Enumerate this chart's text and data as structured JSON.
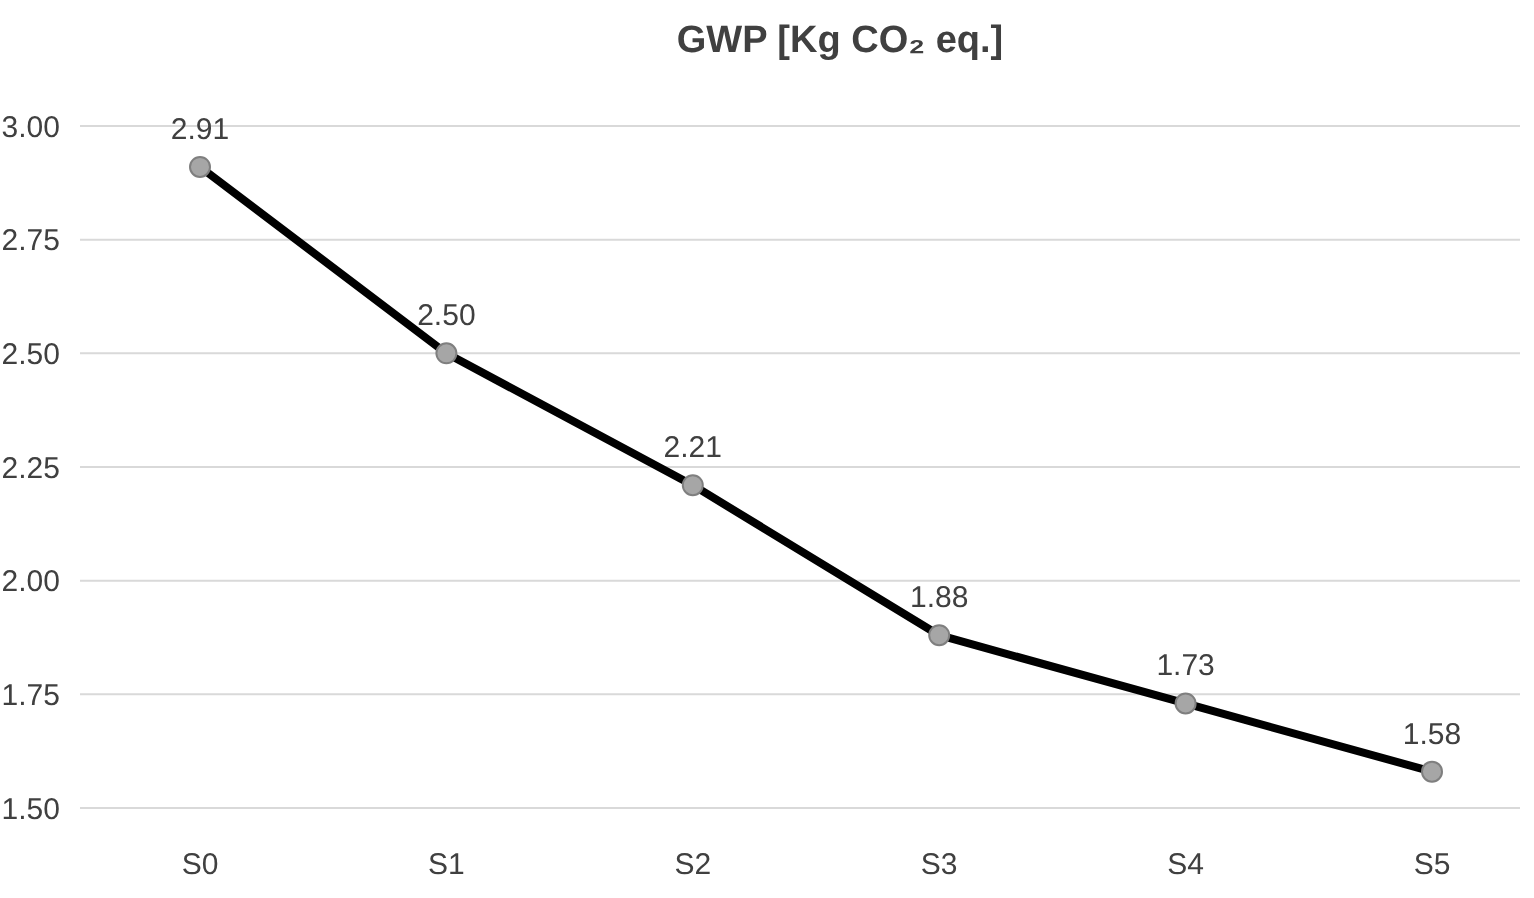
{
  "chart_data": {
    "type": "line",
    "title": "GWP [Kg CO₂ eq.]",
    "categories": [
      "S0",
      "S1",
      "S2",
      "S3",
      "S4",
      "S5"
    ],
    "series": [
      {
        "color": "#000000",
        "values": [
          2.91,
          2.5,
          2.21,
          1.88,
          1.73,
          1.58
        ]
      }
    ],
    "ylim": [
      1.5,
      3.0
    ],
    "yticks": [
      {
        "value": 1.5,
        "label": "1.50"
      },
      {
        "value": 1.75,
        "label": "1.75"
      },
      {
        "value": 2.0,
        "label": "2.00"
      },
      {
        "value": 2.25,
        "label": "2.25"
      },
      {
        "value": 2.5,
        "label": "2.50"
      },
      {
        "value": 2.75,
        "label": "2.75"
      },
      {
        "value": 3.0,
        "label": "3.00"
      }
    ],
    "grid": "y",
    "marker": "circle",
    "line_style": "solid",
    "value_labels": [
      "2.91",
      "2.50",
      "2.21",
      "1.88",
      "1.73",
      "1.58"
    ]
  }
}
